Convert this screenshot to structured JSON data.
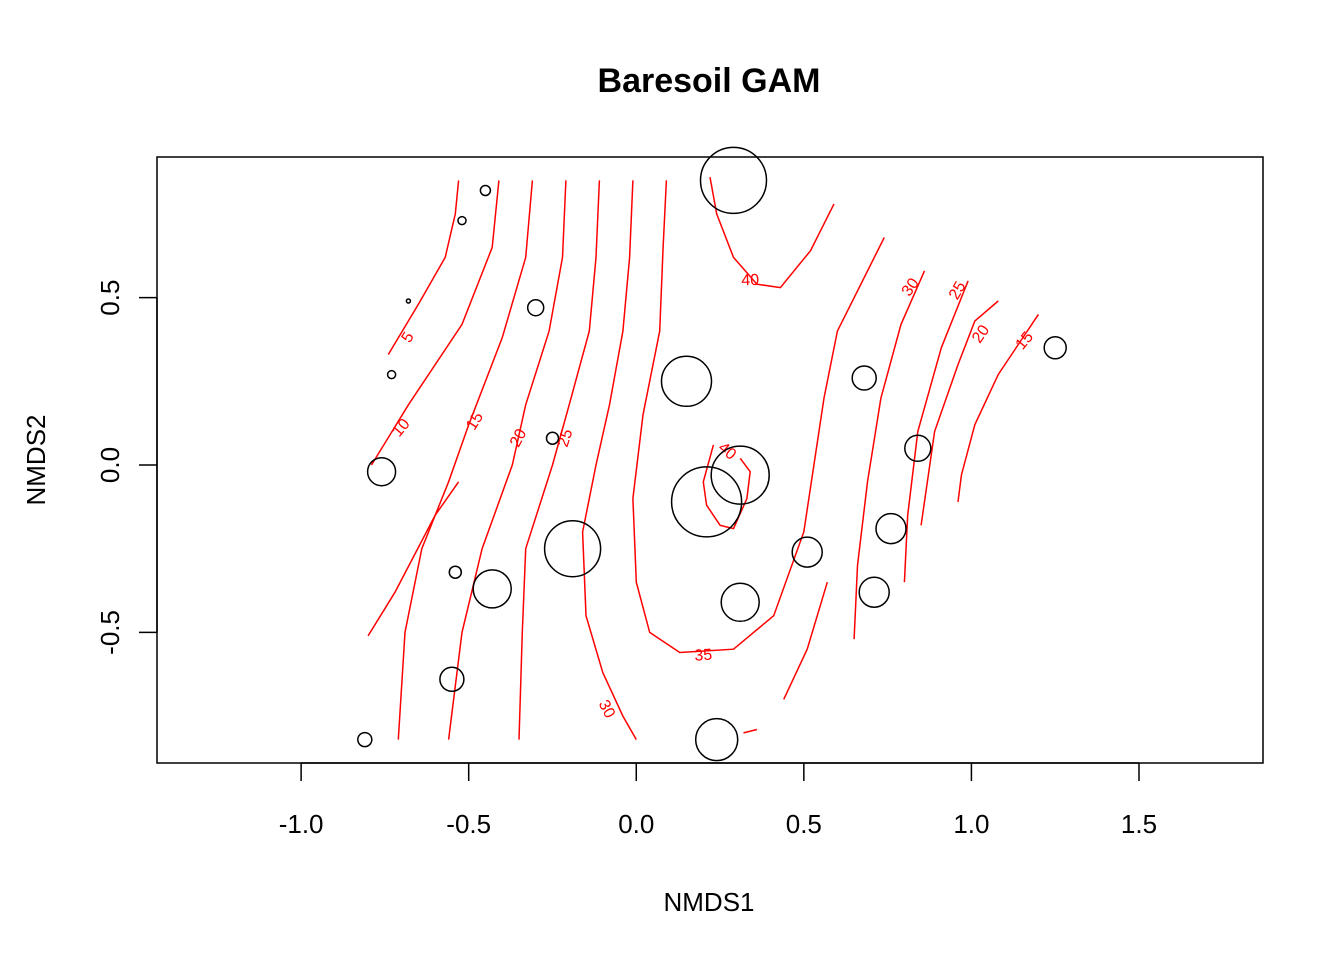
{
  "chart_data": {
    "type": "scatter",
    "title": "Baresoil GAM",
    "xlabel": "NMDS1",
    "ylabel": "NMDS2",
    "xlim": [
      -1.43,
      1.87
    ],
    "ylim": [
      -0.89,
      0.92
    ],
    "x_ticks": [
      "-1.0",
      "-0.5",
      "0.0",
      "0.5",
      "1.0",
      "1.5"
    ],
    "x_tick_values": [
      -1.0,
      -0.5,
      0.0,
      0.5,
      1.0,
      1.5
    ],
    "y_ticks": [
      "-0.5",
      "0.0",
      "0.5"
    ],
    "y_tick_values": [
      -0.5,
      0.0,
      0.5
    ],
    "grid": false,
    "contour_color": "#ff0000",
    "point_color": "#000000",
    "points": [
      {
        "x": 0.29,
        "y": 0.85,
        "r": 33
      },
      {
        "x": -0.45,
        "y": 0.82,
        "r": 5
      },
      {
        "x": -0.52,
        "y": 0.73,
        "r": 4
      },
      {
        "x": -0.68,
        "y": 0.49,
        "r": 2
      },
      {
        "x": -0.3,
        "y": 0.47,
        "r": 8
      },
      {
        "x": -0.73,
        "y": 0.27,
        "r": 4
      },
      {
        "x": 0.15,
        "y": 0.25,
        "r": 25
      },
      {
        "x": 0.68,
        "y": 0.26,
        "r": 12
      },
      {
        "x": 1.25,
        "y": 0.35,
        "r": 11
      },
      {
        "x": -0.25,
        "y": 0.08,
        "r": 6
      },
      {
        "x": 0.84,
        "y": 0.05,
        "r": 13
      },
      {
        "x": 0.31,
        "y": -0.03,
        "r": 29
      },
      {
        "x": 0.21,
        "y": -0.11,
        "r": 35
      },
      {
        "x": -0.76,
        "y": -0.02,
        "r": 14
      },
      {
        "x": 0.76,
        "y": -0.19,
        "r": 15
      },
      {
        "x": -0.19,
        "y": -0.25,
        "r": 28
      },
      {
        "x": 0.51,
        "y": -0.26,
        "r": 15
      },
      {
        "x": -0.54,
        "y": -0.32,
        "r": 6
      },
      {
        "x": -0.43,
        "y": -0.37,
        "r": 19
      },
      {
        "x": 0.71,
        "y": -0.38,
        "r": 15
      },
      {
        "x": 0.31,
        "y": -0.41,
        "r": 19
      },
      {
        "x": -0.55,
        "y": -0.64,
        "r": 12
      },
      {
        "x": 0.24,
        "y": -0.82,
        "r": 21
      },
      {
        "x": -0.81,
        "y": -0.82,
        "r": 7
      }
    ],
    "contours": [
      {
        "level": 5,
        "label": "5",
        "paths": [
          [
            [
              -0.53,
              0.85
            ],
            [
              -0.54,
              0.75
            ],
            [
              -0.57,
              0.62
            ],
            [
              -0.65,
              0.48
            ],
            [
              -0.74,
              0.33
            ]
          ]
        ]
      },
      {
        "level": 10,
        "label": "10",
        "paths": [
          [
            [
              -0.41,
              0.85
            ],
            [
              -0.43,
              0.65
            ],
            [
              -0.52,
              0.42
            ],
            [
              -0.68,
              0.18
            ],
            [
              -0.79,
              0.0
            ]
          ]
        ]
      },
      {
        "level": 10,
        "label": "",
        "paths": [
          [
            [
              -0.53,
              -0.05
            ],
            [
              -0.6,
              -0.15
            ],
            [
              -0.72,
              -0.38
            ],
            [
              -0.8,
              -0.51
            ]
          ]
        ]
      },
      {
        "level": 15,
        "label": "15",
        "paths": [
          [
            [
              -0.31,
              0.85
            ],
            [
              -0.33,
              0.62
            ],
            [
              -0.4,
              0.38
            ],
            [
              -0.5,
              0.12
            ],
            [
              -0.56,
              -0.05
            ],
            [
              -0.64,
              -0.25
            ],
            [
              -0.69,
              -0.5
            ],
            [
              -0.71,
              -0.82
            ]
          ]
        ]
      },
      {
        "level": 20,
        "label": "20",
        "paths": [
          [
            [
              -0.21,
              0.85
            ],
            [
              -0.22,
              0.62
            ],
            [
              -0.26,
              0.4
            ],
            [
              -0.33,
              0.18
            ],
            [
              -0.37,
              0.0
            ],
            [
              -0.46,
              -0.25
            ],
            [
              -0.52,
              -0.5
            ],
            [
              -0.56,
              -0.82
            ]
          ]
        ]
      },
      {
        "level": 25,
        "label": "25",
        "paths": [
          [
            [
              -0.11,
              0.85
            ],
            [
              -0.12,
              0.62
            ],
            [
              -0.14,
              0.4
            ],
            [
              -0.2,
              0.18
            ],
            [
              -0.25,
              0.0
            ],
            [
              -0.33,
              -0.25
            ],
            [
              -0.34,
              -0.5
            ],
            [
              -0.35,
              -0.82
            ]
          ]
        ]
      },
      {
        "level": 30,
        "label": "30",
        "paths": [
          [
            [
              -0.01,
              0.85
            ],
            [
              -0.02,
              0.62
            ],
            [
              -0.04,
              0.4
            ],
            [
              -0.08,
              0.18
            ],
            [
              -0.12,
              0.0
            ],
            [
              -0.16,
              -0.2
            ],
            [
              -0.15,
              -0.45
            ],
            [
              -0.1,
              -0.62
            ],
            [
              -0.04,
              -0.75
            ],
            [
              0.0,
              -0.82
            ]
          ]
        ]
      },
      {
        "level": 35,
        "label": "35",
        "paths": [
          [
            [
              0.09,
              0.85
            ],
            [
              0.08,
              0.65
            ],
            [
              0.07,
              0.4
            ],
            [
              0.02,
              0.15
            ],
            [
              -0.01,
              -0.1
            ],
            [
              0.0,
              -0.35
            ],
            [
              0.04,
              -0.5
            ],
            [
              0.13,
              -0.56
            ],
            [
              0.29,
              -0.55
            ],
            [
              0.41,
              -0.45
            ],
            [
              0.5,
              -0.2
            ],
            [
              0.56,
              0.2
            ],
            [
              0.6,
              0.4
            ],
            [
              0.74,
              0.68
            ]
          ]
        ]
      },
      {
        "level": 35,
        "label": "",
        "paths": [
          [
            [
              0.44,
              -0.7
            ],
            [
              0.51,
              -0.55
            ],
            [
              0.57,
              -0.35
            ]
          ],
          [
            [
              0.36,
              -0.79
            ],
            [
              0.32,
              -0.8
            ]
          ]
        ]
      },
      {
        "level": 40,
        "label": "40",
        "paths": [
          [
            [
              0.22,
              0.86
            ],
            [
              0.24,
              0.75
            ],
            [
              0.29,
              0.62
            ],
            [
              0.36,
              0.54
            ],
            [
              0.43,
              0.53
            ],
            [
              0.52,
              0.64
            ],
            [
              0.59,
              0.78
            ]
          ]
        ]
      },
      {
        "level": 40,
        "label": "40",
        "paths": [
          [
            [
              0.23,
              0.06
            ],
            [
              0.2,
              -0.05
            ],
            [
              0.21,
              -0.12
            ],
            [
              0.25,
              -0.18
            ],
            [
              0.29,
              -0.19
            ],
            [
              0.33,
              -0.1
            ],
            [
              0.34,
              -0.02
            ],
            [
              0.31,
              0.02
            ]
          ]
        ]
      },
      {
        "level": 30,
        "label": "30",
        "paths": [
          [
            [
              0.65,
              -0.52
            ],
            [
              0.66,
              -0.3
            ],
            [
              0.69,
              -0.05
            ],
            [
              0.73,
              0.2
            ],
            [
              0.79,
              0.42
            ],
            [
              0.86,
              0.58
            ]
          ]
        ]
      },
      {
        "level": 25,
        "label": "25",
        "paths": [
          [
            [
              0.8,
              -0.35
            ],
            [
              0.81,
              -0.15
            ],
            [
              0.84,
              0.1
            ],
            [
              0.91,
              0.35
            ],
            [
              0.99,
              0.55
            ]
          ]
        ]
      },
      {
        "level": 20,
        "label": "20",
        "paths": [
          [
            [
              0.85,
              -0.18
            ],
            [
              0.89,
              0.1
            ],
            [
              0.96,
              0.3
            ],
            [
              1.01,
              0.43
            ],
            [
              1.08,
              0.49
            ]
          ]
        ]
      },
      {
        "level": 15,
        "label": "15",
        "paths": [
          [
            [
              0.96,
              -0.11
            ],
            [
              0.97,
              -0.03
            ],
            [
              1.01,
              0.12
            ],
            [
              1.08,
              0.27
            ],
            [
              1.14,
              0.36
            ],
            [
              1.2,
              0.45
            ]
          ]
        ]
      }
    ],
    "contour_label_positions": [
      {
        "label": "5",
        "x": -0.68,
        "y": 0.38,
        "rot": -58
      },
      {
        "label": "10",
        "x": -0.7,
        "y": 0.11,
        "rot": -50
      },
      {
        "label": "15",
        "x": -0.48,
        "y": 0.13,
        "rot": -58
      },
      {
        "label": "20",
        "x": -0.35,
        "y": 0.08,
        "rot": -62
      },
      {
        "label": "25",
        "x": -0.21,
        "y": 0.08,
        "rot": -72
      },
      {
        "label": "30",
        "x": -0.09,
        "y": -0.73,
        "rot": 62
      },
      {
        "label": "35",
        "x": 0.2,
        "y": -0.57,
        "rot": -4
      },
      {
        "label": "40",
        "x": 0.34,
        "y": 0.55,
        "rot": -2
      },
      {
        "label": "40",
        "x": 0.27,
        "y": 0.04,
        "rot": 40
      },
      {
        "label": "30",
        "x": 0.82,
        "y": 0.53,
        "rot": -55
      },
      {
        "label": "25",
        "x": 0.96,
        "y": 0.52,
        "rot": -60
      },
      {
        "label": "20",
        "x": 1.03,
        "y": 0.39,
        "rot": -55
      },
      {
        "label": "15",
        "x": 1.16,
        "y": 0.37,
        "rot": -50
      }
    ]
  }
}
